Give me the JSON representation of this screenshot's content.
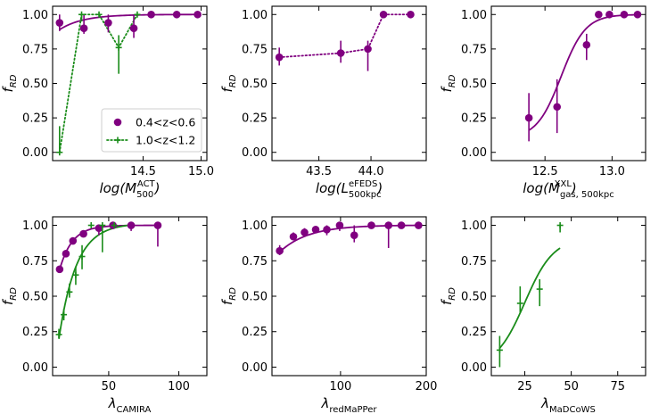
{
  "colors": {
    "purple": "#800080",
    "green": "#1a8c1a"
  },
  "chart_data": [
    {
      "type": "scatter",
      "ylabel": "f",
      "ylabel_sub": "RD",
      "xlabel_parts": [
        [
          "log(M",
          ""
        ],
        [
          "500",
          "sub"
        ],
        [
          "ACT",
          "sup"
        ],
        [
          ")",
          ""
        ]
      ],
      "xlim": [
        13.72,
        15.05
      ],
      "ylim": [
        -0.06,
        1.06
      ],
      "xticks": [
        {
          "v": 14.5,
          "label": "14.5"
        },
        {
          "v": 15.0,
          "label": "15.0"
        }
      ],
      "yticks": [
        {
          "v": 0.0,
          "label": "0.00"
        },
        {
          "v": 0.25,
          "label": "0.25"
        },
        {
          "v": 0.5,
          "label": "0.50"
        },
        {
          "v": 0.75,
          "label": "0.75"
        },
        {
          "v": 1.0,
          "label": "1.00"
        }
      ],
      "legend": {
        "position": "lower-right",
        "entries": [
          {
            "label": "0.4<z<0.6",
            "series": 0
          },
          {
            "label": "1.0<z<1.2",
            "series": 1
          }
        ]
      },
      "series": [
        {
          "name": "0.4<z<0.6",
          "color": "purple",
          "marker": "circle",
          "points": [
            {
              "x": 13.78,
              "y": 0.94,
              "lo": 0.88,
              "hi": 1.0
            },
            {
              "x": 13.99,
              "y": 0.9,
              "lo": 0.86,
              "hi": 1.0
            },
            {
              "x": 14.2,
              "y": 0.94,
              "lo": 0.87,
              "hi": 1.0
            },
            {
              "x": 14.42,
              "y": 0.9,
              "lo": 0.83,
              "hi": 1.0
            },
            {
              "x": 14.57,
              "y": 1.0
            },
            {
              "x": 14.79,
              "y": 1.0
            },
            {
              "x": 14.97,
              "y": 1.0
            }
          ],
          "fit": {
            "x0": 13.78,
            "x1": 14.99,
            "y0": 0.89,
            "y1": 1.0,
            "shape": "rise"
          }
        },
        {
          "name": "1.0<z<1.2",
          "color": "green",
          "marker": "plus",
          "line": "dotted",
          "points": [
            {
              "x": 13.78,
              "y": 0.0,
              "lo": 0.0,
              "hi": 0.19
            },
            {
              "x": 13.97,
              "y": 1.0,
              "lo": 0.95,
              "hi": 1.0
            },
            {
              "x": 14.12,
              "y": 1.0
            },
            {
              "x": 14.29,
              "y": 0.76,
              "lo": 0.57,
              "hi": 0.85
            },
            {
              "x": 14.45,
              "y": 1.0
            }
          ]
        }
      ]
    },
    {
      "type": "scatter",
      "ylabel": "f",
      "ylabel_sub": "RD",
      "xlabel_parts": [
        [
          "log(L",
          ""
        ],
        [
          "500kpc",
          "sub"
        ],
        [
          "eFEDS",
          "sup"
        ],
        [
          ")",
          ""
        ]
      ],
      "xlim": [
        43.05,
        44.53
      ],
      "ylim": [
        -0.06,
        1.06
      ],
      "xticks": [
        {
          "v": 43.5,
          "label": "43.5"
        },
        {
          "v": 44.0,
          "label": "44.0"
        }
      ],
      "yticks": [
        {
          "v": 0.0,
          "label": "0.00"
        },
        {
          "v": 0.25,
          "label": "0.25"
        },
        {
          "v": 0.5,
          "label": "0.50"
        },
        {
          "v": 0.75,
          "label": "0.75"
        },
        {
          "v": 1.0,
          "label": "1.00"
        }
      ],
      "series": [
        {
          "name": "0.4<z<0.6",
          "color": "purple",
          "marker": "circle",
          "line": "dotted",
          "points": [
            {
              "x": 43.12,
              "y": 0.69,
              "lo": 0.63,
              "hi": 0.76
            },
            {
              "x": 43.71,
              "y": 0.72,
              "lo": 0.65,
              "hi": 0.81
            },
            {
              "x": 43.97,
              "y": 0.75,
              "lo": 0.59,
              "hi": 0.81
            },
            {
              "x": 44.12,
              "y": 1.0
            },
            {
              "x": 44.38,
              "y": 1.0
            }
          ]
        }
      ]
    },
    {
      "type": "scatter",
      "ylabel": "f",
      "ylabel_sub": "RD",
      "xlabel_parts": [
        [
          "log(M",
          ""
        ],
        [
          "gas, 500kpc",
          "sub"
        ],
        [
          "XXL",
          "sup"
        ],
        [
          ")",
          ""
        ]
      ],
      "xlim": [
        12.1,
        13.25
      ],
      "ylim": [
        -0.06,
        1.06
      ],
      "xticks": [
        {
          "v": 12.5,
          "label": "12.5"
        },
        {
          "v": 13.0,
          "label": "13.0"
        }
      ],
      "yticks": [
        {
          "v": 0.0,
          "label": "0.00"
        },
        {
          "v": 0.25,
          "label": "0.25"
        },
        {
          "v": 0.5,
          "label": "0.50"
        },
        {
          "v": 0.75,
          "label": "0.75"
        },
        {
          "v": 1.0,
          "label": "1.00"
        }
      ],
      "series": [
        {
          "name": "0.4<z<0.6",
          "color": "purple",
          "marker": "circle",
          "points": [
            {
              "x": 12.38,
              "y": 0.25,
              "lo": 0.08,
              "hi": 0.43
            },
            {
              "x": 12.59,
              "y": 0.33,
              "lo": 0.14,
              "hi": 0.53
            },
            {
              "x": 12.81,
              "y": 0.78,
              "lo": 0.67,
              "hi": 0.86
            },
            {
              "x": 12.9,
              "y": 1.0
            },
            {
              "x": 12.98,
              "y": 1.0
            },
            {
              "x": 13.09,
              "y": 1.0
            },
            {
              "x": 13.19,
              "y": 1.0
            }
          ],
          "fit": {
            "x0": 12.38,
            "x1": 13.18,
            "y0": 0.1,
            "y1": 1.0,
            "shape": "sigmoid",
            "mid": 12.62,
            "k": 11
          }
        }
      ]
    },
    {
      "type": "scatter",
      "ylabel": "f",
      "ylabel_sub": "RD",
      "xlabel_parts": [
        [
          "λ",
          ""
        ],
        [
          "CAMIRA",
          "sub"
        ]
      ],
      "xlim": [
        10,
        120
      ],
      "ylim": [
        -0.06,
        1.06
      ],
      "xticks": [
        {
          "v": 50,
          "label": "50"
        },
        {
          "v": 100,
          "label": "100"
        }
      ],
      "yticks": [
        {
          "v": 0.0,
          "label": "0.00"
        },
        {
          "v": 0.25,
          "label": "0.25"
        },
        {
          "v": 0.5,
          "label": "0.50"
        },
        {
          "v": 0.75,
          "label": "0.75"
        },
        {
          "v": 1.0,
          "label": "1.00"
        }
      ],
      "series": [
        {
          "name": "0.4<z<0.6",
          "color": "purple",
          "marker": "circle",
          "points": [
            {
              "x": 15,
              "y": 0.69
            },
            {
              "x": 19.5,
              "y": 0.8
            },
            {
              "x": 24.5,
              "y": 0.89
            },
            {
              "x": 32,
              "y": 0.94
            },
            {
              "x": 43,
              "y": 0.98,
              "lo": 0.93,
              "hi": 1.0
            },
            {
              "x": 53,
              "y": 1.0
            },
            {
              "x": 66,
              "y": 1.0,
              "lo": 0.96,
              "hi": 1.0
            },
            {
              "x": 85,
              "y": 1.0,
              "lo": 0.85,
              "hi": 1.0
            }
          ],
          "fit": {
            "x0": 14.5,
            "x1": 87,
            "y0": 0.67,
            "y1": 1.0,
            "shape": "rise",
            "k": 8
          }
        },
        {
          "name": "1.0<z<1.2",
          "color": "green",
          "marker": "plus",
          "points": [
            {
              "x": 14.5,
              "y": 0.23,
              "lo": 0.2,
              "hi": 0.27
            },
            {
              "x": 18,
              "y": 0.37,
              "lo": 0.33,
              "hi": 0.41
            },
            {
              "x": 22,
              "y": 0.53,
              "lo": 0.49,
              "hi": 0.59
            },
            {
              "x": 26.5,
              "y": 0.65,
              "lo": 0.58,
              "hi": 0.71
            },
            {
              "x": 31,
              "y": 0.78,
              "lo": 0.69,
              "hi": 0.86
            },
            {
              "x": 37.5,
              "y": 1.0
            },
            {
              "x": 45.5,
              "y": 1.0,
              "lo": 0.81,
              "hi": 1.0
            },
            {
              "x": 54,
              "y": 1.0
            }
          ],
          "fit": {
            "x0": 14.5,
            "x1": 64,
            "y0": 0.2,
            "y1": 1.0,
            "shape": "rise",
            "k": 4
          }
        }
      ]
    },
    {
      "type": "scatter",
      "ylabel": "f",
      "ylabel_sub": "RD",
      "xlabel_parts": [
        [
          "λ",
          ""
        ],
        [
          "redMaPPer",
          "sub"
        ]
      ],
      "xlim": [
        20,
        200
      ],
      "ylim": [
        -0.06,
        1.06
      ],
      "xticks": [
        {
          "v": 100,
          "label": "100"
        },
        {
          "v": 200,
          "label": "200"
        }
      ],
      "yticks": [
        {
          "v": 0.0,
          "label": "0.00"
        },
        {
          "v": 0.25,
          "label": "0.25"
        },
        {
          "v": 0.5,
          "label": "0.50"
        },
        {
          "v": 0.75,
          "label": "0.75"
        },
        {
          "v": 1.0,
          "label": "1.00"
        }
      ],
      "series": [
        {
          "name": "0.4<z<0.6",
          "color": "purple",
          "marker": "circle",
          "points": [
            {
              "x": 29,
              "y": 0.82,
              "lo": 0.79,
              "hi": 0.86
            },
            {
              "x": 45,
              "y": 0.92,
              "lo": 0.9,
              "hi": 0.95
            },
            {
              "x": 58,
              "y": 0.95,
              "lo": 0.93,
              "hi": 0.98
            },
            {
              "x": 71,
              "y": 0.97,
              "lo": 0.95,
              "hi": 0.99
            },
            {
              "x": 84,
              "y": 0.97,
              "lo": 0.93,
              "hi": 1.0
            },
            {
              "x": 99,
              "y": 1.0,
              "lo": 0.96,
              "hi": 1.0
            },
            {
              "x": 116,
              "y": 0.93,
              "lo": 0.88,
              "hi": 1.0
            },
            {
              "x": 136,
              "y": 1.0
            },
            {
              "x": 156,
              "y": 1.0,
              "lo": 0.84,
              "hi": 1.0
            },
            {
              "x": 171,
              "y": 1.0
            },
            {
              "x": 191,
              "y": 1.0
            }
          ],
          "fit": {
            "x0": 27,
            "x1": 193,
            "y0": 0.8,
            "y1": 1.0,
            "shape": "rise",
            "k": 5
          }
        }
      ]
    },
    {
      "type": "scatter",
      "ylabel": "f",
      "ylabel_sub": "RD",
      "xlabel_parts": [
        [
          "λ",
          ""
        ],
        [
          "MaDCoWS",
          "sub"
        ]
      ],
      "xlim": [
        7,
        90
      ],
      "ylim": [
        -0.06,
        1.06
      ],
      "xticks": [
        {
          "v": 25,
          "label": "25"
        },
        {
          "v": 50,
          "label": "50"
        },
        {
          "v": 75,
          "label": "75"
        }
      ],
      "yticks": [
        {
          "v": 0.0,
          "label": "0.00"
        },
        {
          "v": 0.25,
          "label": "0.25"
        },
        {
          "v": 0.5,
          "label": "0.50"
        },
        {
          "v": 0.75,
          "label": "0.75"
        },
        {
          "v": 1.0,
          "label": "1.00"
        }
      ],
      "series": [
        {
          "name": "1.0<z<1.2",
          "color": "green",
          "marker": "plus",
          "points": [
            {
              "x": 11.5,
              "y": 0.12,
              "lo": 0.0,
              "hi": 0.22
            },
            {
              "x": 22.5,
              "y": 0.45,
              "lo": 0.38,
              "hi": 0.57
            },
            {
              "x": 33,
              "y": 0.55,
              "lo": 0.43,
              "hi": 0.62
            },
            {
              "x": 44,
              "y": 1.0,
              "lo": 0.95,
              "hi": 1.0
            }
          ],
          "fit": {
            "x0": 11.5,
            "x1": 44,
            "y0": 0.0,
            "y1": 0.91,
            "shape": "sigmoid",
            "mid": 25,
            "k": 0.13
          }
        }
      ]
    }
  ]
}
